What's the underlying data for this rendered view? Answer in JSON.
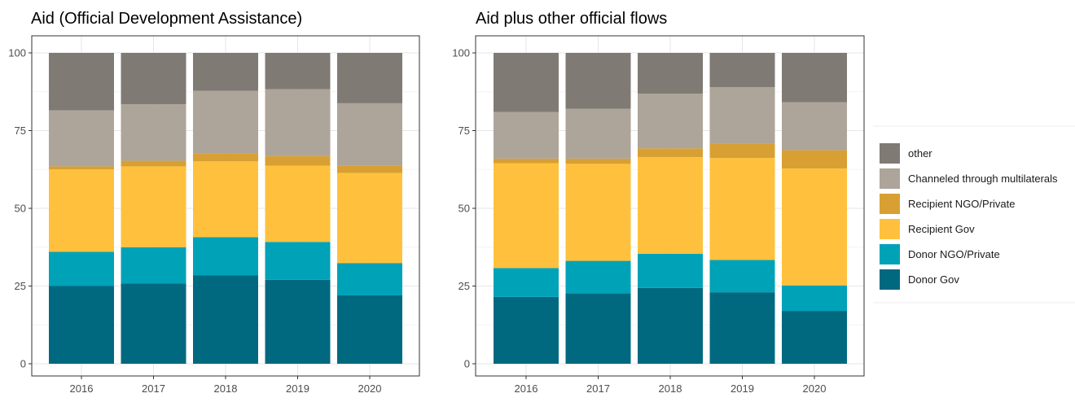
{
  "colors": {
    "other": "#807a75",
    "multilateral": "#ada49a",
    "recipient_ngo": "#d8a033",
    "recipient_gov": "#ffc13d",
    "donor_ngo": "#00a2b7",
    "donor_gov": "#006980"
  },
  "legend": {
    "items": [
      {
        "key": "other",
        "label": "other"
      },
      {
        "key": "multilateral",
        "label": "Channeled through multilaterals"
      },
      {
        "key": "recipient_ngo",
        "label": "Recipient NGO/Private"
      },
      {
        "key": "recipient_gov",
        "label": "Recipient Gov"
      },
      {
        "key": "donor_ngo",
        "label": "Donor NGO/Private"
      },
      {
        "key": "donor_gov",
        "label": "Donor Gov"
      }
    ]
  },
  "chart_data": [
    {
      "type": "bar",
      "stacked": true,
      "title": "Aid (Official Development Assistance)",
      "categories": [
        "2016",
        "2017",
        "2018",
        "2019",
        "2020"
      ],
      "ylim": [
        0,
        100
      ],
      "yticks": [
        0,
        25,
        50,
        75,
        100
      ],
      "grid": true,
      "series": [
        {
          "name": "Donor Gov",
          "key": "donor_gov",
          "values": [
            25,
            25.8,
            28.4,
            27,
            22
          ]
        },
        {
          "name": "Donor NGO/Private",
          "key": "donor_ngo",
          "values": [
            11,
            11.7,
            12.3,
            12.2,
            10.4
          ]
        },
        {
          "name": "Recipient Gov",
          "key": "recipient_gov",
          "values": [
            26.5,
            26,
            24.4,
            24.5,
            29
          ]
        },
        {
          "name": "Recipient NGO/Private",
          "key": "recipient_ngo",
          "values": [
            1,
            1.8,
            2.6,
            3.1,
            2.4
          ]
        },
        {
          "name": "Channeled through multilaterals",
          "key": "multilateral",
          "values": [
            18,
            18.2,
            20.1,
            21.5,
            20
          ]
        },
        {
          "name": "other",
          "key": "other",
          "values": [
            18.5,
            16.5,
            12.2,
            11.7,
            16.2
          ]
        }
      ]
    },
    {
      "type": "bar",
      "stacked": true,
      "title": "Aid plus other official flows",
      "categories": [
        "2016",
        "2017",
        "2018",
        "2019",
        "2020"
      ],
      "ylim": [
        0,
        100
      ],
      "yticks": [
        0,
        25,
        50,
        75,
        100
      ],
      "grid": true,
      "series": [
        {
          "name": "Donor Gov",
          "key": "donor_gov",
          "values": [
            21.5,
            22.7,
            24.4,
            23,
            17
          ]
        },
        {
          "name": "Donor NGO/Private",
          "key": "donor_ngo",
          "values": [
            9.3,
            10.4,
            11,
            10.4,
            8.2
          ]
        },
        {
          "name": "Recipient Gov",
          "key": "recipient_gov",
          "values": [
            33.7,
            31.2,
            31.1,
            32.8,
            37.6
          ]
        },
        {
          "name": "Recipient NGO/Private",
          "key": "recipient_ngo",
          "values": [
            1.5,
            1.7,
            2.8,
            4.5,
            5.9
          ]
        },
        {
          "name": "Channeled through multilaterals",
          "key": "multilateral",
          "values": [
            15,
            16,
            17.6,
            18.3,
            15.4
          ]
        },
        {
          "name": "other",
          "key": "other",
          "values": [
            19,
            18,
            13.1,
            11,
            15.9
          ]
        }
      ]
    }
  ]
}
